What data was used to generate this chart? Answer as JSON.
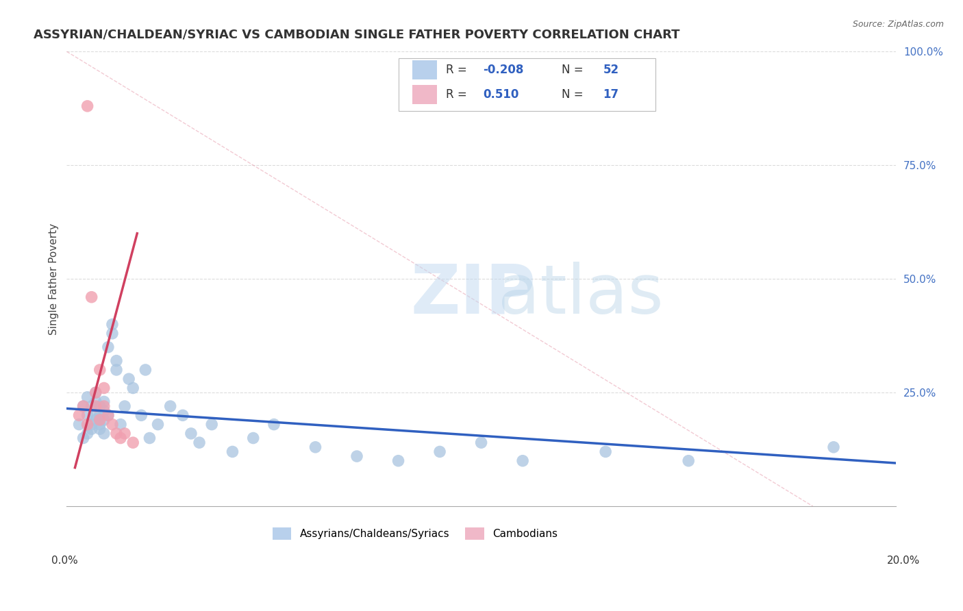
{
  "title": "ASSYRIAN/CHALDEAN/SYRIAC VS CAMBODIAN SINGLE FATHER POVERTY CORRELATION CHART",
  "source": "Source: ZipAtlas.com",
  "ylabel": "Single Father Poverty",
  "xlim": [
    0,
    0.2
  ],
  "ylim": [
    0,
    1.0
  ],
  "assyrian_R": -0.208,
  "assyrian_N": 52,
  "cambodian_R": 0.51,
  "cambodian_N": 17,
  "assyrian_color": "#a8c4e0",
  "cambodian_color": "#f0a0b0",
  "trendline_assyrian_color": "#3060c0",
  "trendline_cambodian_color": "#d04060",
  "legend_box_color_assyrian": "#b8d0ec",
  "legend_box_color_cambodian": "#f0b8c8",
  "background_color": "#ffffff",
  "grid_color": "#d8d8d8",
  "assyrian_x": [
    0.003,
    0.004,
    0.004,
    0.005,
    0.005,
    0.005,
    0.006,
    0.006,
    0.006,
    0.007,
    0.007,
    0.007,
    0.007,
    0.008,
    0.008,
    0.008,
    0.008,
    0.009,
    0.009,
    0.009,
    0.009,
    0.01,
    0.01,
    0.011,
    0.011,
    0.012,
    0.012,
    0.013,
    0.014,
    0.015,
    0.016,
    0.018,
    0.019,
    0.02,
    0.022,
    0.025,
    0.028,
    0.03,
    0.032,
    0.035,
    0.04,
    0.045,
    0.05,
    0.06,
    0.07,
    0.08,
    0.09,
    0.1,
    0.11,
    0.13,
    0.15,
    0.185
  ],
  "assyrian_y": [
    0.18,
    0.22,
    0.15,
    0.2,
    0.24,
    0.16,
    0.18,
    0.22,
    0.17,
    0.23,
    0.2,
    0.19,
    0.25,
    0.18,
    0.22,
    0.2,
    0.17,
    0.21,
    0.23,
    0.19,
    0.16,
    0.2,
    0.35,
    0.38,
    0.4,
    0.32,
    0.3,
    0.18,
    0.22,
    0.28,
    0.26,
    0.2,
    0.3,
    0.15,
    0.18,
    0.22,
    0.2,
    0.16,
    0.14,
    0.18,
    0.12,
    0.15,
    0.18,
    0.13,
    0.11,
    0.1,
    0.12,
    0.14,
    0.1,
    0.12,
    0.1,
    0.13
  ],
  "cambodian_x": [
    0.003,
    0.004,
    0.005,
    0.005,
    0.006,
    0.007,
    0.007,
    0.008,
    0.008,
    0.009,
    0.009,
    0.01,
    0.011,
    0.012,
    0.013,
    0.014,
    0.016
  ],
  "cambodian_y": [
    0.2,
    0.22,
    0.18,
    0.88,
    0.46,
    0.22,
    0.25,
    0.19,
    0.3,
    0.22,
    0.26,
    0.2,
    0.18,
    0.16,
    0.15,
    0.16,
    0.14
  ],
  "trendline_assyrian_x0": 0.0,
  "trendline_assyrian_x1": 0.2,
  "trendline_assyrian_y0": 0.215,
  "trendline_assyrian_y1": 0.095,
  "trendline_cambodian_x0": 0.002,
  "trendline_cambodian_x1": 0.017,
  "trendline_cambodian_y0": 0.085,
  "trendline_cambodian_y1": 0.6
}
